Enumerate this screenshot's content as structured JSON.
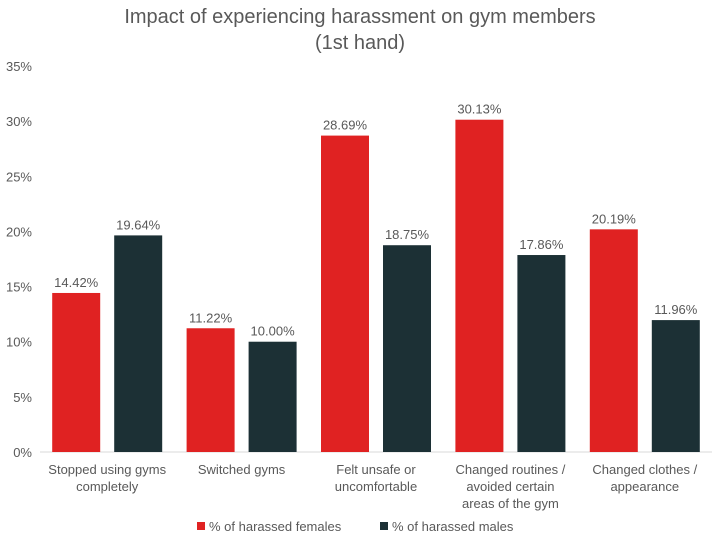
{
  "chart_data": {
    "type": "bar",
    "title_lines": [
      "Impact of experiencing harassment on gym members",
      "(1st hand)"
    ],
    "categories": [
      [
        "Stopped using gyms",
        "completely"
      ],
      [
        "Switched gyms"
      ],
      [
        "Felt unsafe or",
        "uncomfortable"
      ],
      [
        "Changed routines /",
        "avoided certain",
        "areas of the gym"
      ],
      [
        "Changed clothes /",
        "appearance"
      ]
    ],
    "series": [
      {
        "name": "% of harassed females",
        "color": "#e02222",
        "values": [
          14.42,
          11.22,
          28.69,
          30.13,
          20.19
        ],
        "labels": [
          "14.42%",
          "11.22%",
          "28.69%",
          "30.13%",
          "20.19%"
        ]
      },
      {
        "name": "% of harassed males",
        "color": "#1c3035",
        "values": [
          19.64,
          10.0,
          18.75,
          17.86,
          11.96
        ],
        "labels": [
          "19.64%",
          "10.00%",
          "18.75%",
          "17.86%",
          "11.96%"
        ]
      }
    ],
    "yticks": [
      "0%",
      "5%",
      "10%",
      "15%",
      "20%",
      "25%",
      "30%",
      "35%"
    ],
    "ylim": [
      0,
      35
    ],
    "grid": false,
    "legend_position": "bottom"
  }
}
